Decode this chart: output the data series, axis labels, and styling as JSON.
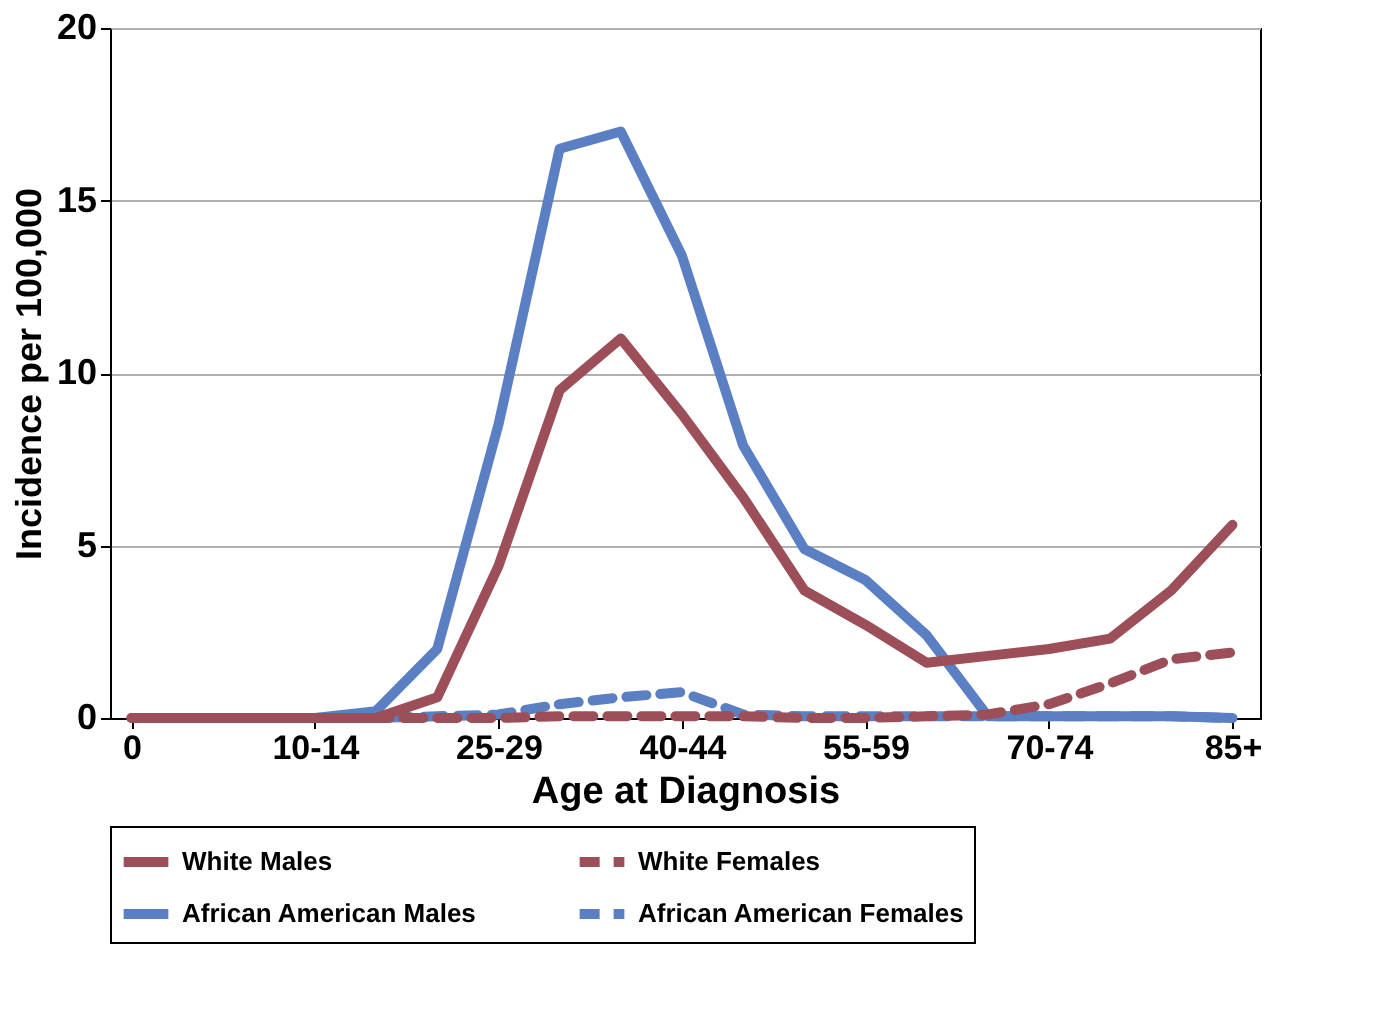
{
  "chart_data": {
    "type": "line",
    "xlabel": "Age at Diagnosis",
    "ylabel": "Incidence per 100,000",
    "categories": [
      "0",
      null,
      null,
      "10-14",
      null,
      null,
      "25-29",
      null,
      null,
      "40-44",
      null,
      null,
      "55-59",
      null,
      null,
      "70-74",
      null,
      null,
      "85+"
    ],
    "series": [
      {
        "name": "White Males",
        "color": "#9c4f58",
        "line_style": "solid",
        "values": [
          0,
          0,
          0,
          0,
          0,
          0.6,
          4.4,
          9.5,
          11.0,
          8.8,
          6.4,
          3.7,
          2.7,
          1.6,
          1.8,
          2.0,
          2.3,
          3.7,
          5.6
        ]
      },
      {
        "name": "White Females",
        "color": "#9c4f58",
        "line_style": "dashed",
        "values": [
          0,
          0,
          0,
          0,
          0,
          0,
          0,
          0.05,
          0.05,
          0.05,
          0.05,
          0,
          0,
          0.05,
          0.1,
          0.4,
          1.0,
          1.7,
          1.9
        ]
      },
      {
        "name": "African American Males",
        "color": "#5b7fc3",
        "line_style": "solid",
        "values": [
          null,
          null,
          0,
          0,
          0.2,
          2.0,
          8.5,
          16.5,
          17.0,
          13.4,
          7.9,
          4.9,
          4.0,
          2.4,
          0.05,
          0.05,
          0.05,
          0.05,
          0
        ]
      },
      {
        "name": "African American Females",
        "color": "#5b7fc3",
        "line_style": "dashed",
        "values": [
          null,
          null,
          0,
          0,
          0,
          0.05,
          0.1,
          0.4,
          0.6,
          0.75,
          0.1,
          0.05,
          0.05,
          0.05,
          0.05,
          0.05,
          0.05,
          0.05,
          0
        ]
      }
    ],
    "ylim": [
      0,
      20
    ],
    "yticks": [
      0,
      5,
      10,
      15,
      20
    ],
    "grid": "y",
    "legend": "bottom",
    "marker": "none"
  }
}
